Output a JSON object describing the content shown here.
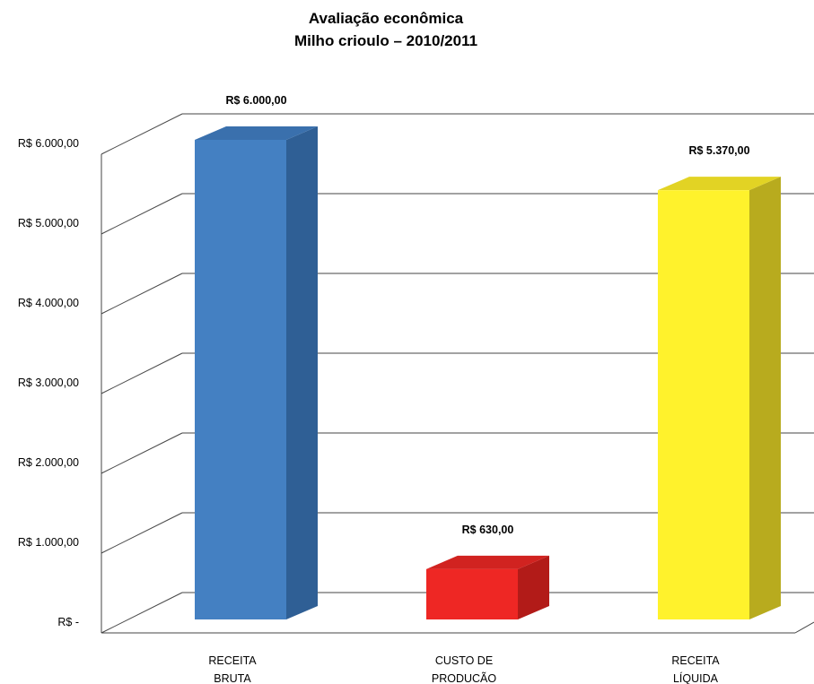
{
  "chart_data": {
    "type": "bar",
    "title_lines": [
      "Avaliação econômica",
      "Milho crioulo – 2010/2011"
    ],
    "categories": [
      [
        "RECEITA",
        "BRUTA"
      ],
      [
        "CUSTO DE",
        "PRODUCÃO"
      ],
      [
        "RECEITA",
        "LÍQUIDA"
      ]
    ],
    "values": [
      6000,
      630,
      5370
    ],
    "data_labels": [
      "R$ 6.000,00",
      "R$ 630,00",
      "R$ 5.370,00"
    ],
    "ylim": [
      0,
      6000
    ],
    "y_ticks": [
      {
        "value": 0,
        "label": "R$ -"
      },
      {
        "value": 1000,
        "label": "R$ 1.000,00"
      },
      {
        "value": 2000,
        "label": "R$ 2.000,00"
      },
      {
        "value": 3000,
        "label": "R$ 3.000,00"
      },
      {
        "value": 4000,
        "label": "R$ 4.000,00"
      },
      {
        "value": 5000,
        "label": "R$ 5.000,00"
      },
      {
        "value": 6000,
        "label": "R$ 6.000,00"
      }
    ],
    "grid": true,
    "legend": "none",
    "style": "3d-column",
    "colors": [
      {
        "front": "#4480c2",
        "side": "#2f5f95",
        "top": "#3a70ad"
      },
      {
        "front": "#ee2724",
        "side": "#b21b18",
        "top": "#d12320"
      },
      {
        "front": "#fff22c",
        "side": "#b8ab1e",
        "top": "#e2d324"
      }
    ]
  }
}
